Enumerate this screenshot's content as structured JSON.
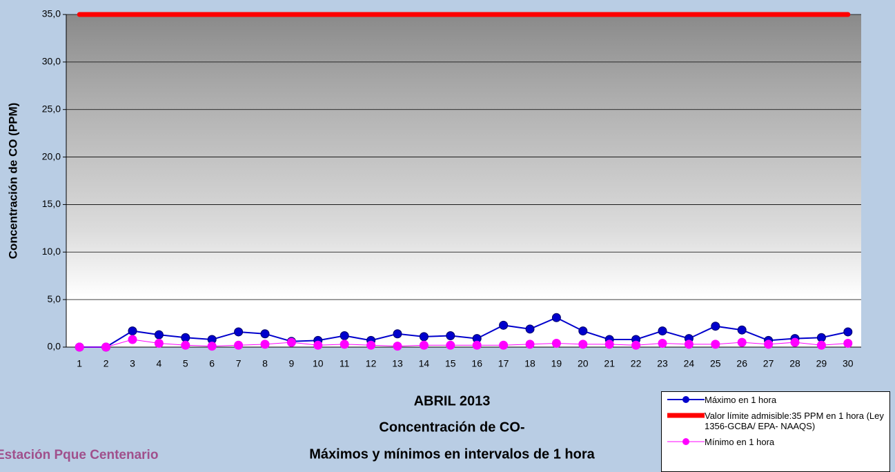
{
  "chart_data": {
    "type": "line",
    "title": [
      "ABRIL 2013",
      "Concentración de CO-",
      "Máximos y mínimos en intervalos de 1 hora"
    ],
    "subtitle": "Estación Pque Centenario",
    "y_label": "Concentración de CO (PPM)",
    "categories": [
      "1",
      "2",
      "3",
      "4",
      "5",
      "6",
      "7",
      "8",
      "9",
      "10",
      "11",
      "12",
      "13",
      "14",
      "15",
      "16",
      "17",
      "18",
      "19",
      "20",
      "21",
      "22",
      "23",
      "24",
      "25",
      "26",
      "27",
      "28",
      "29",
      "30"
    ],
    "series": [
      {
        "name": "Máximo en 1 hora",
        "color": "#0000cc",
        "marker": true,
        "line_width": 2,
        "values": [
          0,
          0,
          1.7,
          1.3,
          1.0,
          0.8,
          1.6,
          1.4,
          0.6,
          0.7,
          1.2,
          0.7,
          1.4,
          1.1,
          1.2,
          0.9,
          2.3,
          1.9,
          3.1,
          1.7,
          0.8,
          0.8,
          1.7,
          0.9,
          2.2,
          1.8,
          0.7,
          0.9,
          1.0,
          1.6
        ]
      },
      {
        "name": "Valor límite admisible:35 PPM en 1 hora (Ley 1356-GCBA/ EPA- NAAQS)",
        "color": "#ff0000",
        "marker": false,
        "line_width": 7,
        "values": [
          35,
          35,
          35,
          35,
          35,
          35,
          35,
          35,
          35,
          35,
          35,
          35,
          35,
          35,
          35,
          35,
          35,
          35,
          35,
          35,
          35,
          35,
          35,
          35,
          35,
          35,
          35,
          35,
          35,
          35
        ]
      },
      {
        "name": "Mínimo en 1 hora",
        "color": "#ff00ff",
        "marker": true,
        "line_width": 1,
        "values": [
          0,
          0,
          0.8,
          0.4,
          0.2,
          0.1,
          0.2,
          0.3,
          0.5,
          0.2,
          0.3,
          0.2,
          0.1,
          0.2,
          0.2,
          0.2,
          0.2,
          0.3,
          0.4,
          0.3,
          0.3,
          0.2,
          0.4,
          0.3,
          0.3,
          0.5,
          0.3,
          0.5,
          0.2,
          0.4
        ]
      }
    ],
    "ylim": [
      0,
      35
    ],
    "yticks": [
      {
        "value": 0,
        "label": "0,0"
      },
      {
        "value": 5,
        "label": "5,0"
      },
      {
        "value": 10,
        "label": "10,0"
      },
      {
        "value": 15,
        "label": "15,0"
      },
      {
        "value": 20,
        "label": "20,0"
      },
      {
        "value": 25,
        "label": "25,0"
      },
      {
        "value": 30,
        "label": "30,0"
      },
      {
        "value": 35,
        "label": "35,0"
      }
    ],
    "grid": true
  }
}
